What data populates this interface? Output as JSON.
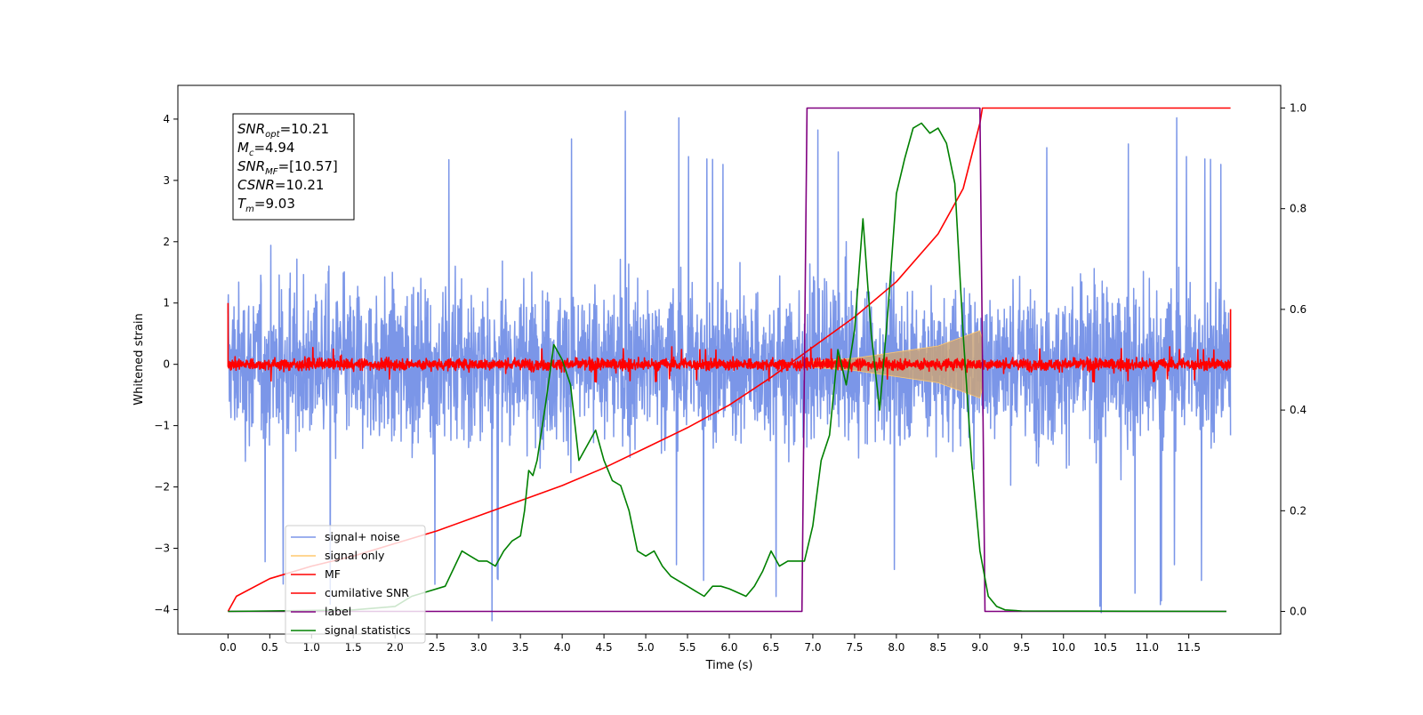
{
  "chart_data": {
    "type": "line",
    "title": "",
    "xlabel": "Time (s)",
    "ylabel": "Whitened strain",
    "y2label": "",
    "xlim": [
      -0.6,
      12.6
    ],
    "ylim": [
      -4.4,
      4.55
    ],
    "y2lim": [
      -0.045,
      1.045
    ],
    "xticks": [
      0.0,
      0.5,
      1.0,
      1.5,
      2.0,
      2.5,
      3.0,
      3.5,
      4.0,
      4.5,
      5.0,
      5.5,
      6.0,
      6.5,
      7.0,
      7.5,
      8.0,
      8.5,
      9.0,
      9.5,
      10.0,
      10.5,
      11.0,
      11.5
    ],
    "xtick_labels": [
      "0.0",
      "0.5",
      "1.0",
      "1.5",
      "2.0",
      "2.5",
      "3.0",
      "3.5",
      "4.0",
      "4.5",
      "5.0",
      "5.5",
      "6.0",
      "6.5",
      "7.0",
      "7.5",
      "8.0",
      "8.5",
      "9.0",
      "9.5",
      "10.0",
      "10.5",
      "11.0",
      "11.5"
    ],
    "yticks": [
      -4,
      -3,
      -2,
      -1,
      0,
      1,
      2,
      3,
      4
    ],
    "ytick_labels": [
      "−4",
      "−3",
      "−2",
      "−1",
      "0",
      "1",
      "2",
      "3",
      "4"
    ],
    "y2ticks": [
      0.0,
      0.2,
      0.4,
      0.6,
      0.8,
      1.0
    ],
    "y2tick_labels": [
      "0.0",
      "0.2",
      "0.4",
      "0.6",
      "0.8",
      "1.0"
    ],
    "grid": false,
    "legend_position": "lower-left",
    "annotation_lines": [
      {
        "sym": "SNR",
        "sub": "opt",
        "value": "=10.21"
      },
      {
        "sym": "M",
        "sub": "c",
        "value": "=4.94"
      },
      {
        "sym": "SNR",
        "sub": "MF",
        "value": "=[10.57]"
      },
      {
        "sym": "CSNR",
        "sub": "",
        "value": "=10.21"
      },
      {
        "sym": "T",
        "sub": "m",
        "value": "=9.03"
      }
    ],
    "series": [
      {
        "name": "signal+ noise",
        "axis": "left",
        "color": "#7b96e8",
        "kind": "noise",
        "x_range": [
          0.0,
          12.0
        ],
        "amplitude_typical": 1.6,
        "amplitude_peak": 4.2,
        "mean": 0.0
      },
      {
        "name": "signal only",
        "axis": "left",
        "color": "#ffc86e",
        "kind": "chirp",
        "x_range": [
          7.0,
          9.03
        ],
        "amplitude_envelope": {
          "x": [
            7.0,
            7.5,
            8.0,
            8.5,
            9.0,
            9.03
          ],
          "y": [
            0.05,
            0.1,
            0.2,
            0.3,
            0.55,
            0.4
          ]
        }
      },
      {
        "name": "MF",
        "axis": "left",
        "color": "#ff0000",
        "kind": "noise",
        "x_range": [
          0.0,
          12.0
        ],
        "amplitude_typical": 0.12,
        "amplitude_peak": 0.3,
        "mean": 0.0,
        "endpoints": [
          {
            "x": 0.0,
            "y": 1.0
          },
          {
            "x": 12.0,
            "y": 0.9
          }
        ]
      },
      {
        "name": "cumilative SNR",
        "axis": "right",
        "color": "#ff0000",
        "x": [
          0.0,
          0.1,
          0.5,
          1.0,
          1.5,
          2.0,
          2.5,
          3.0,
          3.5,
          4.0,
          4.5,
          5.0,
          5.5,
          6.0,
          6.5,
          7.0,
          7.5,
          8.0,
          8.5,
          8.8,
          9.0,
          9.03,
          12.0
        ],
        "values": [
          0.0,
          0.03,
          0.065,
          0.09,
          0.11,
          0.135,
          0.16,
          0.19,
          0.22,
          0.25,
          0.285,
          0.325,
          0.365,
          0.41,
          0.465,
          0.525,
          0.585,
          0.655,
          0.75,
          0.84,
          0.97,
          1.0,
          1.0
        ]
      },
      {
        "name": "label",
        "axis": "right",
        "color": "#800080",
        "x": [
          0.0,
          6.87,
          6.93,
          9.0,
          9.06,
          11.95
        ],
        "values": [
          0.0,
          0.0,
          1.0,
          1.0,
          0.0,
          0.0
        ]
      },
      {
        "name": "signal statistics",
        "axis": "right",
        "color": "#008000",
        "x": [
          0.0,
          0.5,
          1.0,
          1.5,
          2.0,
          2.2,
          2.4,
          2.6,
          2.8,
          2.9,
          3.0,
          3.1,
          3.2,
          3.3,
          3.4,
          3.5,
          3.55,
          3.6,
          3.65,
          3.7,
          3.8,
          3.9,
          4.0,
          4.1,
          4.2,
          4.3,
          4.4,
          4.5,
          4.6,
          4.7,
          4.8,
          4.9,
          5.0,
          5.1,
          5.2,
          5.3,
          5.4,
          5.5,
          5.6,
          5.7,
          5.8,
          5.9,
          6.0,
          6.2,
          6.3,
          6.4,
          6.5,
          6.6,
          6.7,
          6.8,
          6.9,
          7.0,
          7.1,
          7.2,
          7.3,
          7.4,
          7.5,
          7.6,
          7.7,
          7.8,
          7.9,
          8.0,
          8.1,
          8.2,
          8.3,
          8.4,
          8.5,
          8.6,
          8.7,
          8.8,
          8.9,
          9.0,
          9.1,
          9.2,
          9.3,
          9.5,
          11.95
        ],
        "values": [
          0.0,
          0.001,
          0.002,
          0.003,
          0.01,
          0.03,
          0.04,
          0.05,
          0.12,
          0.11,
          0.1,
          0.1,
          0.09,
          0.12,
          0.14,
          0.15,
          0.2,
          0.28,
          0.27,
          0.3,
          0.41,
          0.53,
          0.5,
          0.45,
          0.3,
          0.33,
          0.36,
          0.3,
          0.26,
          0.25,
          0.2,
          0.12,
          0.11,
          0.12,
          0.09,
          0.07,
          0.06,
          0.05,
          0.04,
          0.03,
          0.05,
          0.05,
          0.045,
          0.03,
          0.05,
          0.08,
          0.12,
          0.09,
          0.1,
          0.1,
          0.1,
          0.17,
          0.3,
          0.35,
          0.52,
          0.45,
          0.56,
          0.78,
          0.55,
          0.4,
          0.6,
          0.83,
          0.9,
          0.96,
          0.97,
          0.95,
          0.96,
          0.93,
          0.85,
          0.55,
          0.3,
          0.12,
          0.03,
          0.01,
          0.003,
          0.001,
          0.0
        ]
      }
    ]
  }
}
